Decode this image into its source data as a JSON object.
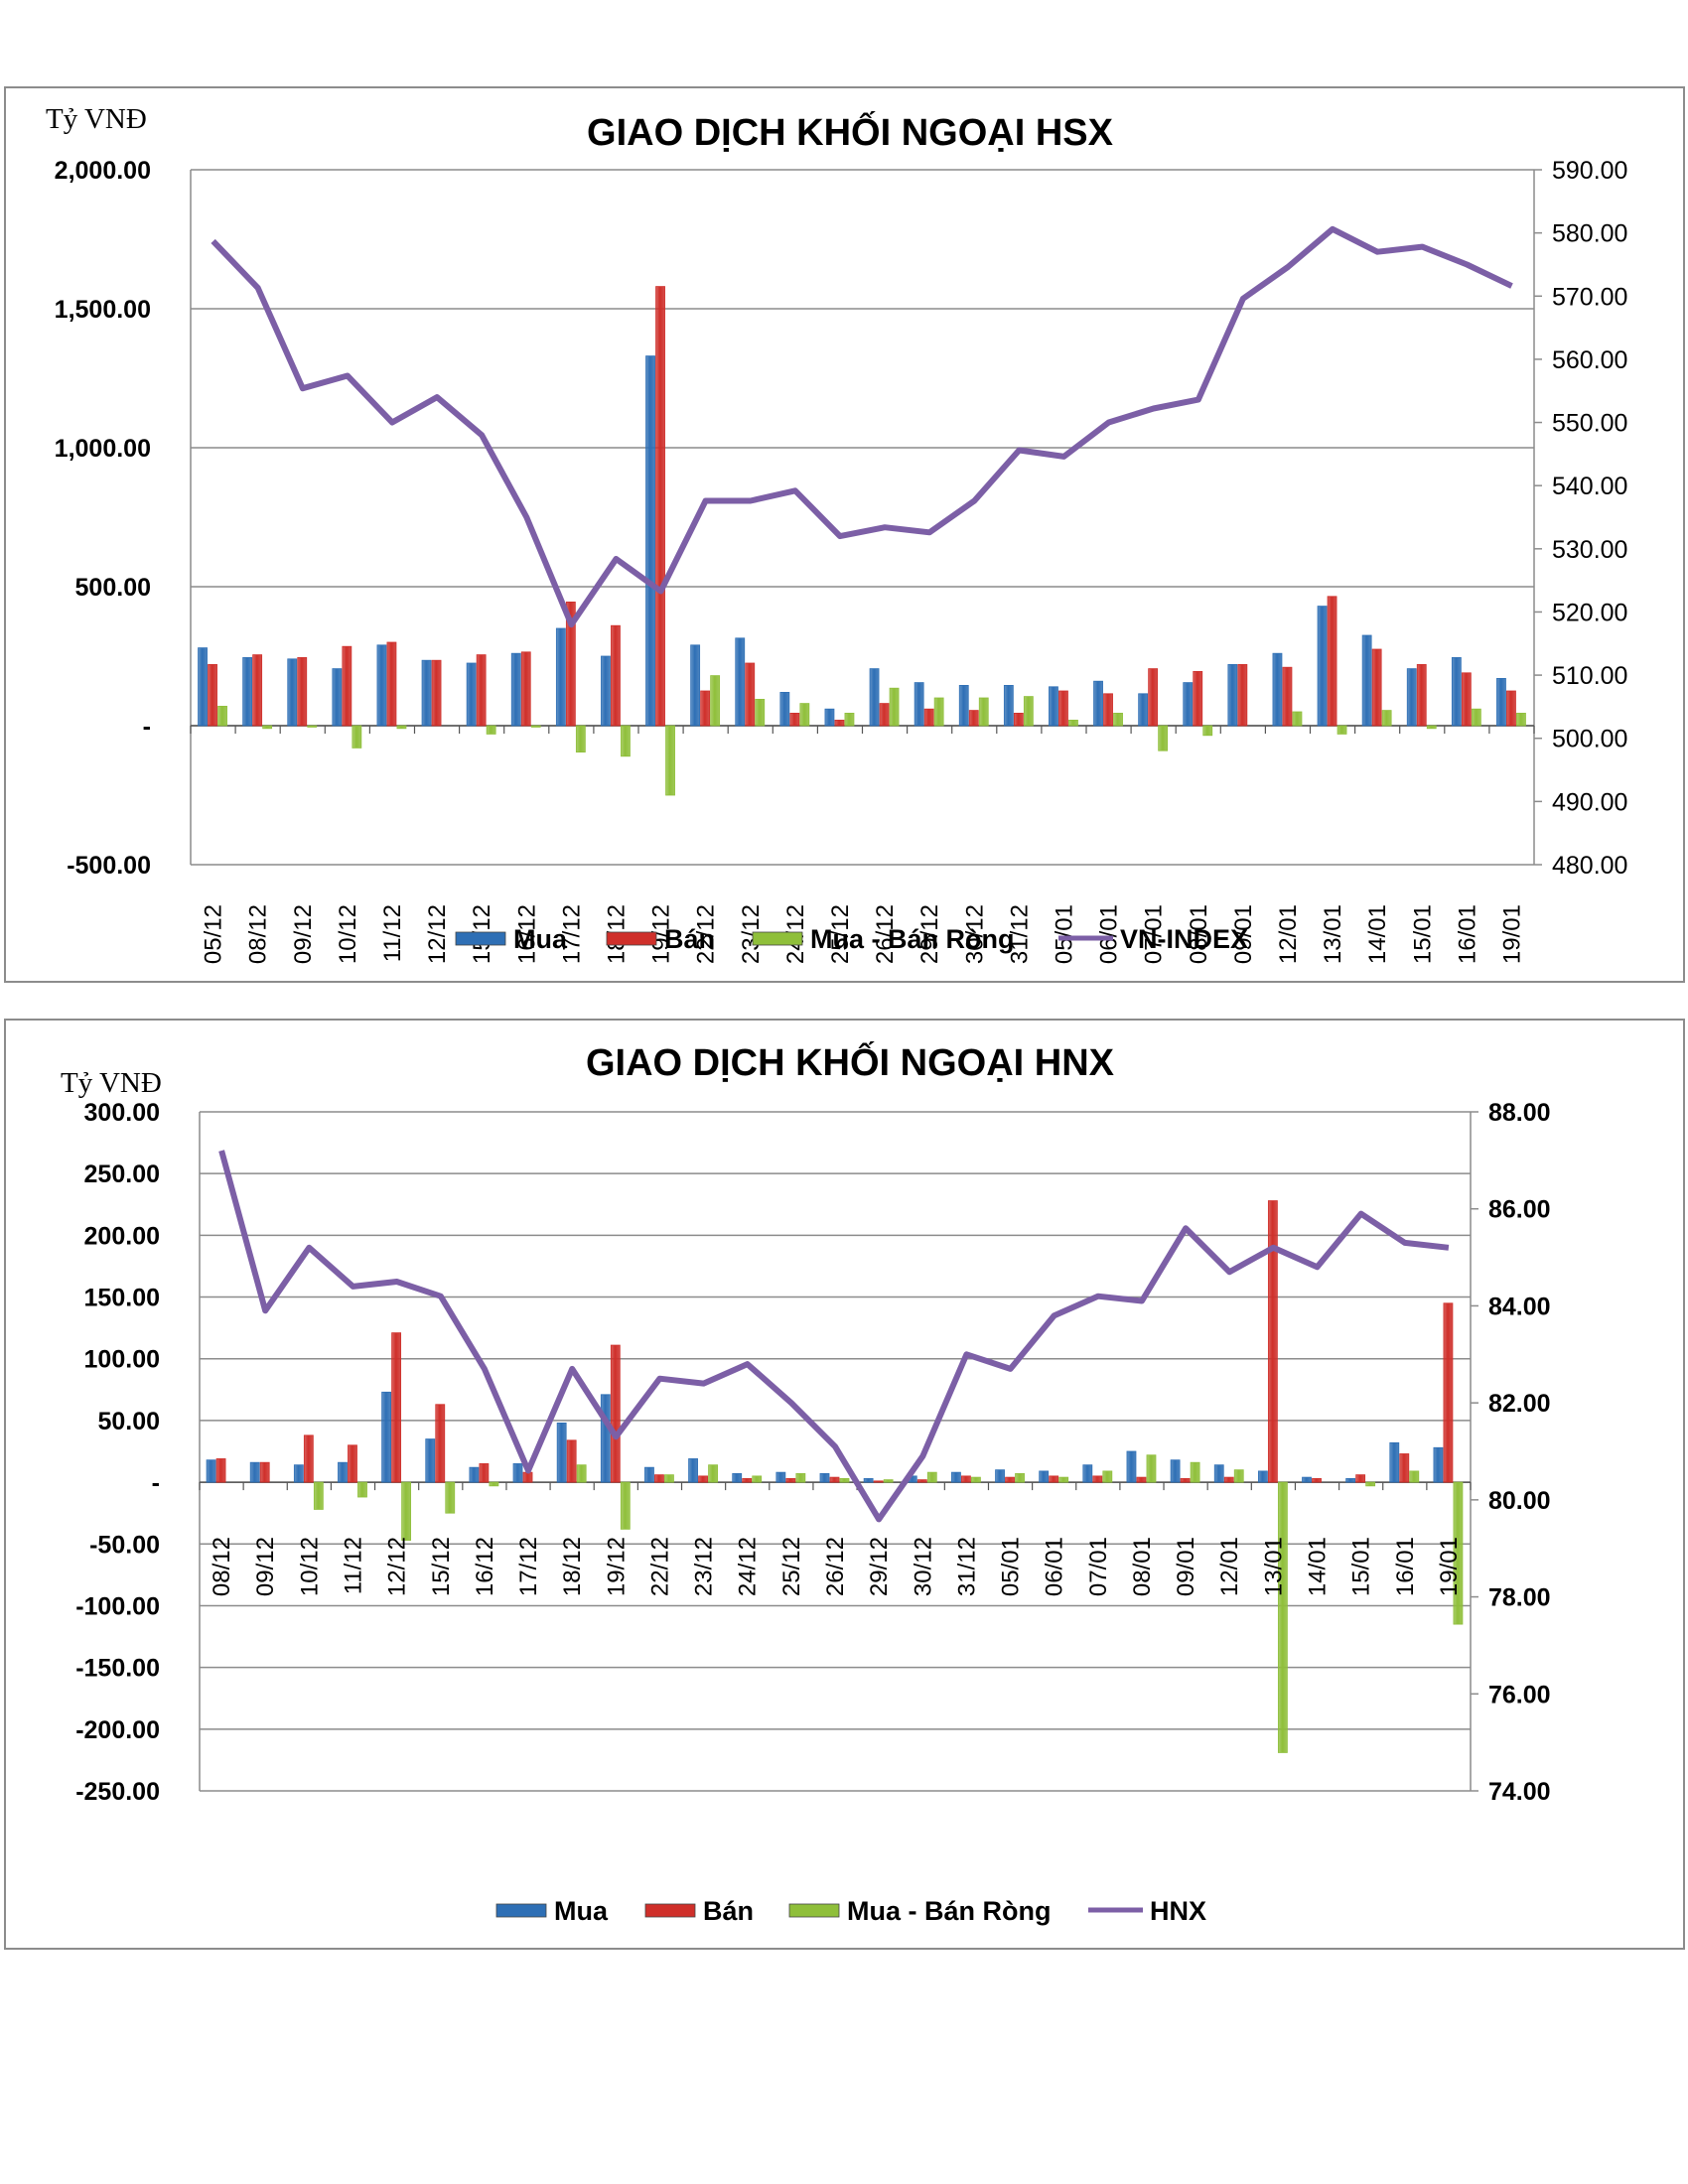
{
  "colors": {
    "mua": "#2e6fb5",
    "ban": "#cf2f2a",
    "rong": "#8fbf3a",
    "index": "#7c5fa6",
    "grid": "#8c8c8c"
  },
  "chart_data": [
    {
      "type": "bar",
      "title": "GIAO DỊCH KHỐI NGOẠI HSX",
      "y_unit_label": "Tỷ VNĐ",
      "categories": [
        "05/12",
        "08/12",
        "09/12",
        "10/12",
        "11/12",
        "12/12",
        "15/12",
        "16/12",
        "17/12",
        "18/12",
        "19/12",
        "22/12",
        "23/12",
        "24/12",
        "25/12",
        "26/12",
        "29/12",
        "30/12",
        "31/12",
        "05/01",
        "06/01",
        "07/01",
        "08/01",
        "09/01",
        "12/01",
        "13/01",
        "14/01",
        "15/01",
        "16/01",
        "19/01"
      ],
      "ylim": [
        -500,
        2000
      ],
      "y_ticks": [
        -500,
        0,
        500,
        1000,
        1500,
        2000
      ],
      "y_tick_labels": [
        "-500.00",
        "-",
        "500.00",
        "1,000.00",
        "1,500.00",
        "2,000.00"
      ],
      "y2lim": [
        480,
        590
      ],
      "y2_ticks": [
        480,
        490,
        500,
        510,
        520,
        530,
        540,
        550,
        560,
        570,
        580,
        590
      ],
      "y2_tick_labels": [
        "480.00",
        "490.00",
        "500.00",
        "510.00",
        "520.00",
        "530.00",
        "540.00",
        "550.00",
        "560.00",
        "570.00",
        "580.00",
        "590.00"
      ],
      "legend_position": "bottom",
      "grid": true,
      "series": [
        {
          "name": "Mua",
          "type": "bar",
          "axis": "left",
          "color": "#2e6fb5",
          "values": [
            280,
            245,
            240,
            205,
            290,
            235,
            225,
            260,
            350,
            250,
            1330,
            290,
            315,
            120,
            60,
            205,
            155,
            145,
            145,
            140,
            160,
            115,
            155,
            220,
            260,
            430,
            325,
            205,
            245,
            170
          ]
        },
        {
          "name": "Bán",
          "type": "bar",
          "axis": "left",
          "color": "#cf2f2a",
          "values": [
            220,
            255,
            245,
            285,
            300,
            235,
            255,
            265,
            445,
            360,
            1580,
            125,
            225,
            45,
            20,
            80,
            60,
            55,
            45,
            125,
            115,
            205,
            195,
            220,
            210,
            465,
            275,
            220,
            190,
            125
          ]
        },
        {
          "name": "Mua - Bán Ròng",
          "type": "bar",
          "axis": "left",
          "color": "#8fbf3a",
          "values": [
            70,
            -10,
            -5,
            -80,
            -10,
            0,
            -30,
            -5,
            -95,
            -110,
            -250,
            180,
            95,
            80,
            45,
            135,
            100,
            100,
            105,
            20,
            45,
            -90,
            -35,
            0,
            50,
            -30,
            55,
            -10,
            60,
            45
          ]
        },
        {
          "name": "VN-INDEX",
          "type": "line",
          "axis": "right",
          "color": "#7c5fa6",
          "values": [
            578.7,
            571.3,
            555.4,
            557.4,
            550.0,
            554.0,
            548.0,
            535.0,
            518.0,
            528.4,
            523.3,
            537.6,
            537.6,
            539.2,
            532.0,
            533.4,
            532.6,
            537.6,
            545.6,
            544.6,
            550.0,
            552.2,
            553.6,
            569.6,
            574.6,
            580.6,
            577.0,
            577.8,
            575.0,
            571.6
          ]
        }
      ]
    },
    {
      "type": "bar",
      "title": "GIAO DỊCH KHỐI NGOẠI HNX",
      "y_unit_label": "Tỷ VNĐ",
      "categories": [
        "08/12",
        "09/12",
        "10/12",
        "11/12",
        "12/12",
        "15/12",
        "16/12",
        "17/12",
        "18/12",
        "19/12",
        "22/12",
        "23/12",
        "24/12",
        "25/12",
        "26/12",
        "29/12",
        "30/12",
        "31/12",
        "05/01",
        "06/01",
        "07/01",
        "08/01",
        "09/01",
        "12/01",
        "13/01",
        "14/01",
        "15/01",
        "16/01",
        "19/01"
      ],
      "ylim": [
        -250,
        300
      ],
      "y_ticks": [
        -250,
        -200,
        -150,
        -100,
        -50,
        0,
        50,
        100,
        150,
        200,
        250,
        300
      ],
      "y_tick_labels": [
        "-250.00",
        "-200.00",
        "-150.00",
        "-100.00",
        "-50.00",
        "-",
        "50.00",
        "100.00",
        "150.00",
        "200.00",
        "250.00",
        "300.00"
      ],
      "y2lim": [
        74,
        88
      ],
      "y2_ticks": [
        74,
        76,
        78,
        80,
        82,
        84,
        86,
        88
      ],
      "y2_tick_labels": [
        "74.00",
        "76.00",
        "78.00",
        "80.00",
        "82.00",
        "84.00",
        "86.00",
        "88.00"
      ],
      "legend_position": "bottom",
      "grid": true,
      "series": [
        {
          "name": "Mua",
          "type": "bar",
          "axis": "left",
          "color": "#2e6fb5",
          "values": [
            18,
            16,
            14,
            16,
            73,
            35,
            12,
            15,
            48,
            71,
            12,
            19,
            7,
            8,
            7,
            3,
            5,
            8,
            10,
            9,
            14,
            25,
            18,
            14,
            9,
            4,
            3,
            32,
            28
          ]
        },
        {
          "name": "Bán",
          "type": "bar",
          "axis": "left",
          "color": "#cf2f2a",
          "values": [
            19,
            16,
            38,
            30,
            121,
            63,
            15,
            8,
            34,
            111,
            6,
            5,
            3,
            3,
            4,
            1,
            2,
            5,
            4,
            5,
            5,
            4,
            3,
            4,
            228,
            3,
            6,
            23,
            145
          ]
        },
        {
          "name": "Mua - Bán Ròng",
          "type": "bar",
          "axis": "left",
          "color": "#8fbf3a",
          "values": [
            0,
            0,
            -22,
            -12,
            -47,
            -25,
            -3,
            0,
            14,
            -38,
            6,
            14,
            5,
            7,
            3,
            2,
            8,
            4,
            7,
            4,
            9,
            22,
            16,
            10,
            -219,
            0,
            -3,
            9,
            -115
          ]
        },
        {
          "name": "HNX",
          "type": "line",
          "axis": "right",
          "color": "#7c5fa6",
          "values": [
            87.2,
            83.9,
            85.2,
            84.4,
            84.5,
            84.2,
            82.7,
            80.6,
            82.7,
            81.3,
            82.5,
            82.4,
            82.8,
            82.0,
            81.1,
            79.6,
            80.9,
            83.0,
            82.7,
            83.8,
            84.2,
            84.1,
            85.6,
            84.7,
            85.2,
            84.8,
            85.9,
            85.3,
            85.2
          ]
        }
      ]
    }
  ]
}
